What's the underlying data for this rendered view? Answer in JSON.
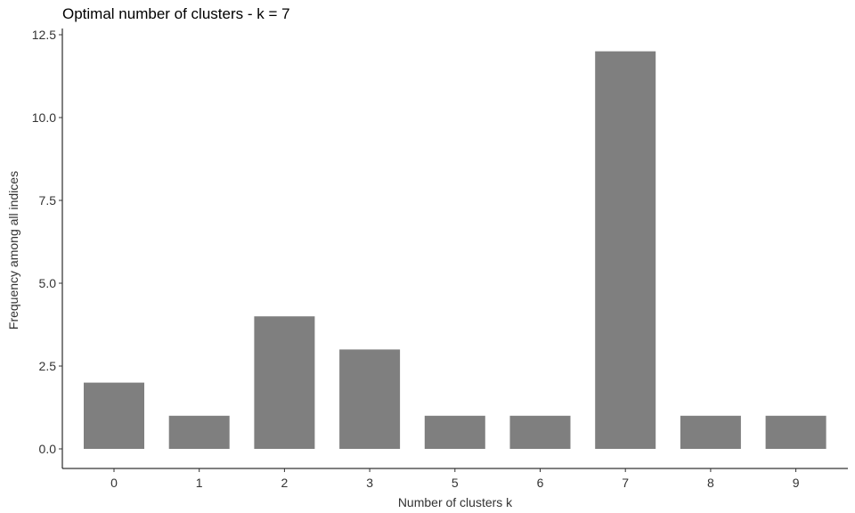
{
  "chart_data": {
    "type": "bar",
    "title": "Optimal number of clusters - k = 7",
    "xlabel": "Number of clusters k",
    "ylabel": "Frequency among all indices",
    "categories": [
      "0",
      "1",
      "2",
      "3",
      "5",
      "6",
      "7",
      "8",
      "9"
    ],
    "values": [
      2,
      1,
      4,
      3,
      1,
      1,
      12,
      1,
      1
    ],
    "ylim": [
      0,
      12.5
    ],
    "yticks": [
      "0.0",
      "2.5",
      "5.0",
      "7.5",
      "10.0",
      "12.5"
    ],
    "bar_color": "#7f7f7f",
    "grid": false,
    "legend": "none"
  }
}
